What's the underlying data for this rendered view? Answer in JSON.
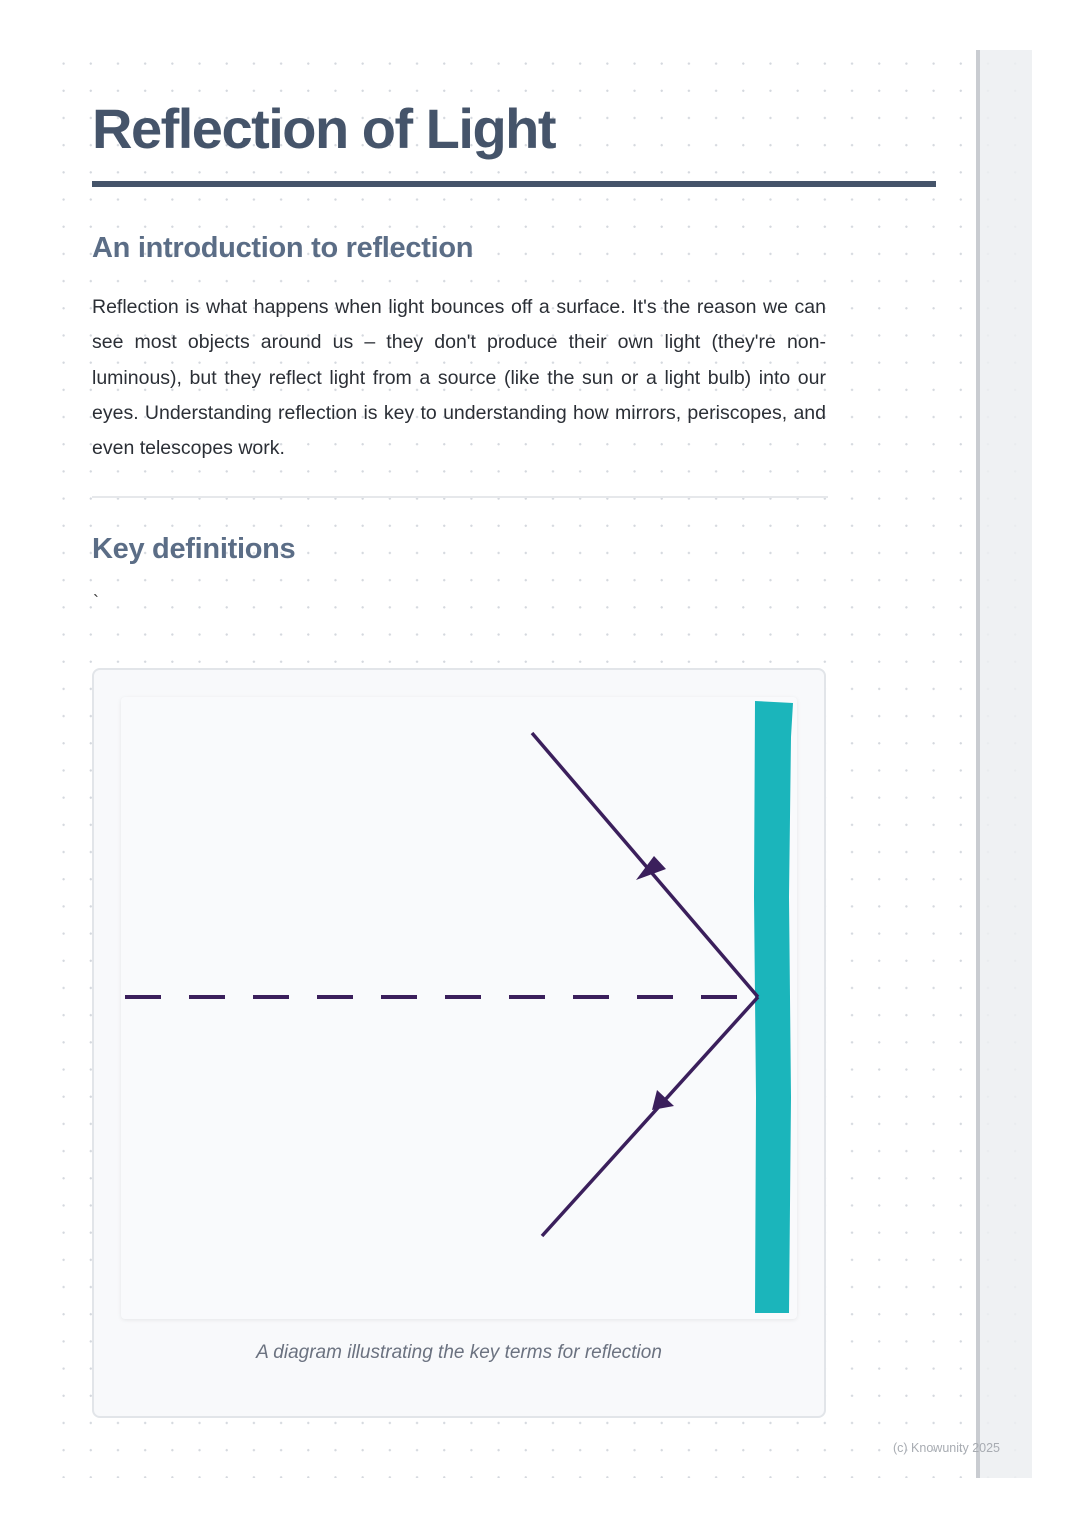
{
  "title": "Reflection of Light",
  "sections": [
    {
      "heading": "An introduction to reflection",
      "body": "Reflection is what happens when light bounces off a surface. It's the reason we can see most objects around us – they don't produce their own light (they're non-luminous), but they reflect light from a source (like the sun or a light bulb) into our eyes. Understanding reflection is key to understanding how mirrors, periscopes, and even telescopes work."
    },
    {
      "heading": "Key definitions",
      "body": "`"
    }
  ],
  "figure": {
    "caption": "A diagram illustrating the key terms for reflection",
    "colors": {
      "mirror": "#1bb5bb",
      "ray": "#3b1f5c"
    }
  },
  "footer": "(c) Knowunity 2025"
}
